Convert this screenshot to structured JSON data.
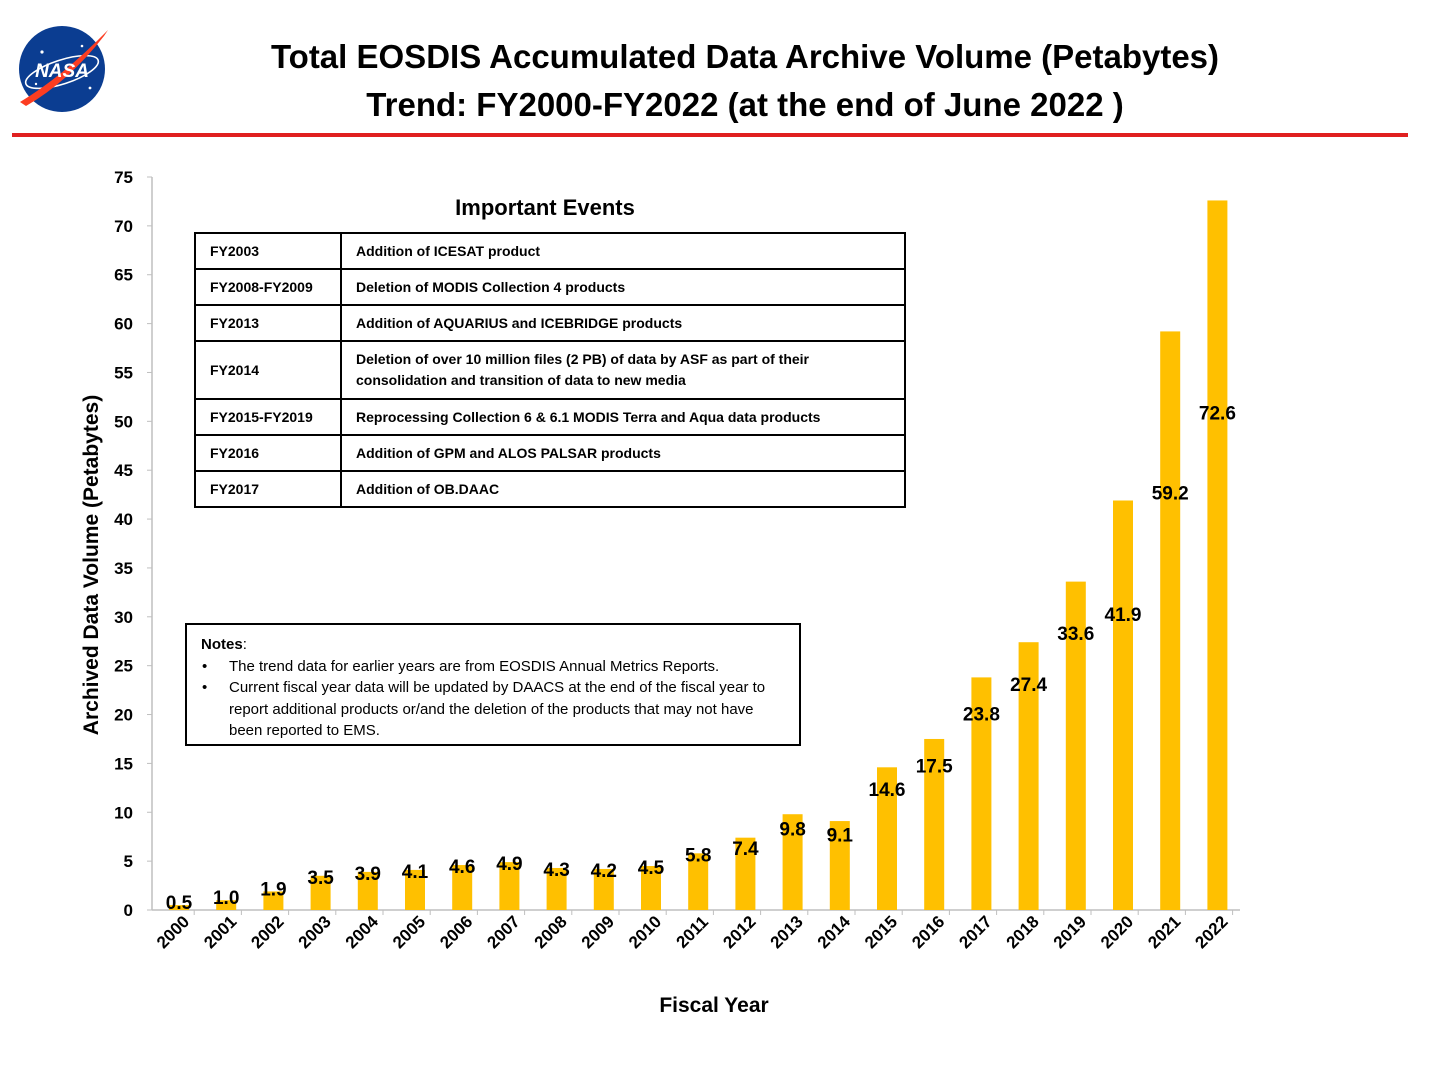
{
  "logo": {
    "text": "NASA",
    "icon": "nasa-meatball-logo"
  },
  "header": {
    "title_line1": "Total EOSDIS Accumulated Data Archive Volume (Petabytes)",
    "title_line2": "Trend: FY2000-FY2022 (at the end of June 2022 )"
  },
  "colors": {
    "bar": "#FFC000",
    "rule": "#E02020"
  },
  "events": {
    "heading": "Important Events",
    "rows": [
      {
        "year": "FY2003",
        "text": "Addition of ICESAT product"
      },
      {
        "year": "FY2008-FY2009",
        "text": "Deletion of  MODIS Collection 4 products"
      },
      {
        "year": "FY2013",
        "text": "Addition of AQUARIUS and ICEBRIDGE products"
      },
      {
        "year": "FY2014",
        "text": "Deletion of over 10 million files (2 PB) of data by ASF as part of their consolidation and transition of data to new media"
      },
      {
        "year": "FY2015-FY2019",
        "text": "Reprocessing  Collection 6 & 6.1 MODIS Terra and Aqua data products"
      },
      {
        "year": "FY2016",
        "text": "Addition of GPM and ALOS PALSAR products"
      },
      {
        "year": "FY2017",
        "text": "Addition of OB.DAAC"
      }
    ]
  },
  "notes": {
    "title": "Notes",
    "items": [
      "The trend data for earlier years are from EOSDIS Annual Metrics Reports.",
      "Current fiscal year data will be updated by DAACS at the end of the fiscal year to report additional products or/and the deletion of the products that may not have been reported to EMS."
    ]
  },
  "chart_data": {
    "type": "bar",
    "title": "Total EOSDIS Accumulated Data Archive Volume (Petabytes) Trend: FY2000-FY2022 (at the end of June 2022 )",
    "xlabel": "Fiscal Year",
    "ylabel": "Archived Data Volume (Petabytes)",
    "ylim": [
      0,
      75
    ],
    "yticks": [
      0,
      5,
      10,
      15,
      20,
      25,
      30,
      35,
      40,
      45,
      50,
      55,
      60,
      65,
      70,
      75
    ],
    "grid": false,
    "categories": [
      "2000",
      "2001",
      "2002",
      "2003",
      "2004",
      "2005",
      "2006",
      "2007",
      "2008",
      "2009",
      "2010",
      "2011",
      "2012",
      "2013",
      "2014",
      "2015",
      "2016",
      "2017",
      "2018",
      "2019",
      "2020",
      "2021",
      "2022"
    ],
    "values": [
      0.5,
      1.0,
      1.9,
      3.5,
      3.9,
      4.1,
      4.6,
      4.9,
      4.3,
      4.2,
      4.5,
      5.8,
      7.4,
      9.8,
      9.1,
      14.6,
      17.5,
      23.8,
      27.4,
      33.6,
      41.9,
      59.2,
      72.6
    ],
    "labels": [
      "0.5",
      "1.0",
      "1.9",
      "3.5",
      "3.9",
      "4.1",
      "4.6",
      "4.9",
      "4.3",
      "4.2",
      "4.5",
      "5.8",
      "7.4",
      "9.8",
      "9.1",
      "14.6",
      "17.5",
      "23.8",
      "27.4",
      "33.6",
      "41.9",
      "59.2",
      "72.6"
    ]
  }
}
